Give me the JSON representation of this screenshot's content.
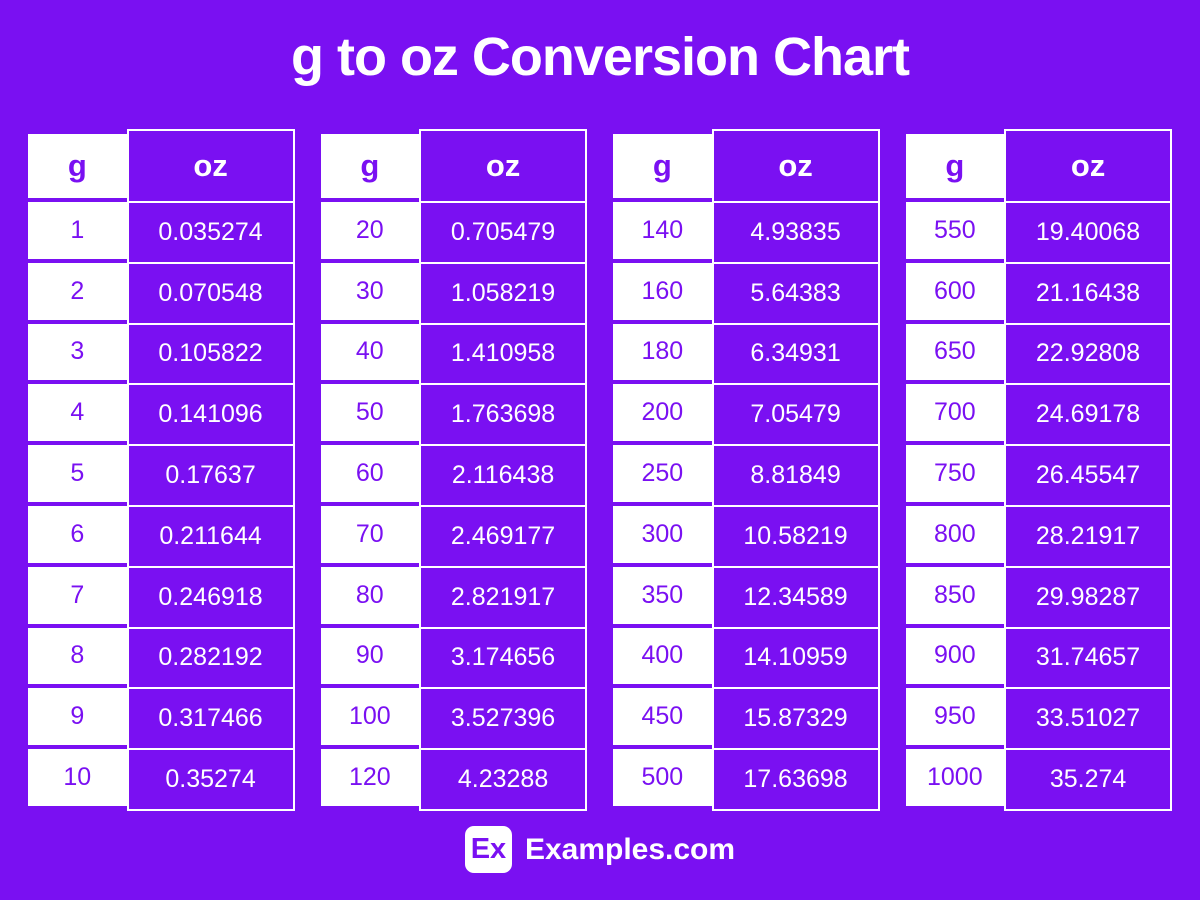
{
  "title": "g to oz Conversion Chart",
  "colors": {
    "background": "#7A10F2",
    "accent_purple": "#7A10F2",
    "cell_white": "#FFFFFF",
    "text_on_purple": "#FFFFFF",
    "text_on_white": "#7A10F2"
  },
  "chart_data": {
    "type": "table",
    "title": "g to oz Conversion Chart",
    "columns": [
      "g",
      "oz"
    ],
    "tables": [
      {
        "rows": [
          [
            "1",
            "0.035274"
          ],
          [
            "2",
            "0.070548"
          ],
          [
            "3",
            "0.105822"
          ],
          [
            "4",
            "0.141096"
          ],
          [
            "5",
            "0.17637"
          ],
          [
            "6",
            "0.211644"
          ],
          [
            "7",
            "0.246918"
          ],
          [
            "8",
            "0.282192"
          ],
          [
            "9",
            "0.317466"
          ],
          [
            "10",
            "0.35274"
          ]
        ]
      },
      {
        "rows": [
          [
            "20",
            "0.705479"
          ],
          [
            "30",
            "1.058219"
          ],
          [
            "40",
            "1.410958"
          ],
          [
            "50",
            "1.763698"
          ],
          [
            "60",
            "2.116438"
          ],
          [
            "70",
            "2.469177"
          ],
          [
            "80",
            "2.821917"
          ],
          [
            "90",
            "3.174656"
          ],
          [
            "100",
            "3.527396"
          ],
          [
            "120",
            "4.23288"
          ]
        ]
      },
      {
        "rows": [
          [
            "140",
            "4.93835"
          ],
          [
            "160",
            "5.64383"
          ],
          [
            "180",
            "6.34931"
          ],
          [
            "200",
            "7.05479"
          ],
          [
            "250",
            "8.81849"
          ],
          [
            "300",
            "10.58219"
          ],
          [
            "350",
            "12.34589"
          ],
          [
            "400",
            "14.10959"
          ],
          [
            "450",
            "15.87329"
          ],
          [
            "500",
            "17.63698"
          ]
        ]
      },
      {
        "rows": [
          [
            "550",
            "19.40068"
          ],
          [
            "600",
            "21.16438"
          ],
          [
            "650",
            "22.92808"
          ],
          [
            "700",
            "24.69178"
          ],
          [
            "750",
            "26.45547"
          ],
          [
            "800",
            "28.21917"
          ],
          [
            "850",
            "29.98287"
          ],
          [
            "900",
            "31.74657"
          ],
          [
            "950",
            "33.51027"
          ],
          [
            "1000",
            "35.274"
          ]
        ]
      }
    ]
  },
  "footer": {
    "logo_text": "Ex",
    "brand": "Examples.com"
  }
}
